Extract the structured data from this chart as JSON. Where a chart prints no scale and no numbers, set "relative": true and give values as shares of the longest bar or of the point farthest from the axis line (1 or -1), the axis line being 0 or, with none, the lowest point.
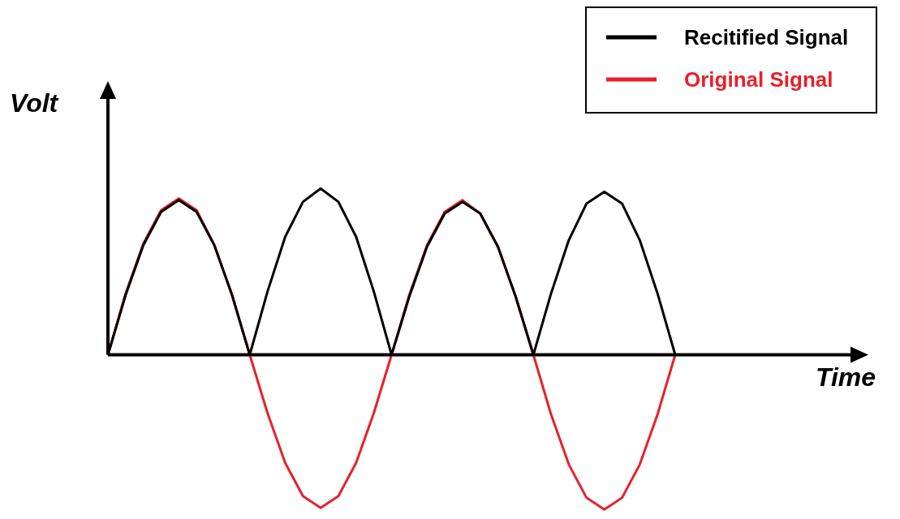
{
  "chart_data": {
    "type": "line",
    "relative": true,
    "annotations": [
      "Time"
    ],
    "ylabel": "Volt",
    "legend": "top right",
    "marker": "none",
    "line_style": "solid",
    "categories": [
      null,
      null,
      null,
      null,
      null,
      null,
      null,
      null,
      null,
      null,
      null,
      null,
      null,
      null,
      null,
      null,
      null,
      null,
      null,
      null,
      null,
      null,
      null,
      null,
      null,
      null,
      null,
      null,
      null,
      null,
      null,
      null,
      null
    ],
    "series": [
      {
        "name": "Original Signal",
        "color": "#e8202a",
        "values": [
          0,
          0.37,
          0.67,
          0.87,
          0.94,
          0.87,
          0.66,
          0.36,
          0,
          -0.35,
          -0.65,
          -0.85,
          -0.92,
          -0.85,
          -0.65,
          -0.35,
          0,
          0.36,
          0.66,
          0.86,
          0.93,
          0.85,
          0.65,
          0.35,
          0,
          -0.36,
          -0.66,
          -0.86,
          -0.93,
          -0.86,
          -0.66,
          -0.36,
          0
        ]
      },
      {
        "name": "Recitified Signal",
        "color": "#000000",
        "values": [
          0,
          0.36,
          0.66,
          0.86,
          0.93,
          0.86,
          0.66,
          0.36,
          0,
          0.38,
          0.71,
          0.92,
          1,
          0.92,
          0.71,
          0.38,
          0,
          0.35,
          0.65,
          0.85,
          0.92,
          0.85,
          0.65,
          0.35,
          0,
          0.37,
          0.69,
          0.91,
          0.98,
          0.91,
          0.69,
          0.37,
          0
        ]
      }
    ]
  }
}
